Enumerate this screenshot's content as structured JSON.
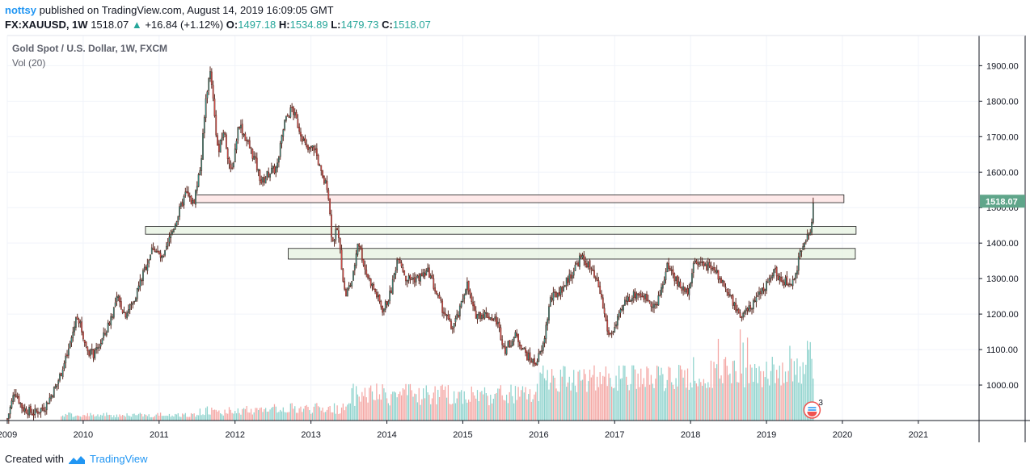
{
  "header": {
    "user": "nottsy",
    "published": " published on TradingView.com, August 14, 2019 16:09:05 GMT",
    "symbol": "FX:XAUUSD, 1W",
    "last": "1518.07",
    "change": "+16.84 (+1.12%)",
    "o_label": "O:",
    "o_val": "1497.18",
    "h_label": "H:",
    "h_val": "1534.89",
    "l_label": "L:",
    "l_val": "1479.73",
    "c_label": "C:",
    "c_val": "1518.07"
  },
  "legend": {
    "title": "Gold Spot / U.S. Dollar, 1W, FXCM",
    "volume": "Vol (20)"
  },
  "footer": {
    "created_with": "Created with",
    "brand": "TradingView"
  },
  "colors": {
    "up": "#26a69a",
    "down": "#ef5350",
    "candle_border": "#5a2a22",
    "vol_up": "#8fd3cd",
    "vol_down": "#f4a7a4",
    "resistance_fill": "#fde2e2",
    "support_fill": "#e6f2e0",
    "price_label_bg": "#5fa58a"
  },
  "chart_data": {
    "type": "candlestick",
    "title": "Gold Spot / U.S. Dollar, 1W, FXCM",
    "x_axis": {
      "range": [
        2009.0,
        2021.8
      ],
      "ticks": [
        "2009",
        "2010",
        "2011",
        "2012",
        "2013",
        "2014",
        "2015",
        "2016",
        "2017",
        "2018",
        "2019",
        "2020",
        "2021"
      ]
    },
    "y_axis": {
      "range": [
        900,
        1985
      ],
      "position": "right",
      "ticks": [
        "1000.00",
        "1100.00",
        "1200.00",
        "1300.00",
        "1400.00",
        "1500.00",
        "1600.00",
        "1700.00",
        "1800.00",
        "1900.00"
      ]
    },
    "last_price": "1518.07",
    "volume_indicator": "Vol (20)",
    "price_path": [
      [
        2009.0,
        905
      ],
      [
        2009.1,
        985
      ],
      [
        2009.2,
        935
      ],
      [
        2009.35,
        920
      ],
      [
        2009.5,
        940
      ],
      [
        2009.65,
        1000
      ],
      [
        2009.8,
        1090
      ],
      [
        2009.92,
        1200
      ],
      [
        2010.05,
        1100
      ],
      [
        2010.15,
        1085
      ],
      [
        2010.3,
        1150
      ],
      [
        2010.45,
        1245
      ],
      [
        2010.55,
        1200
      ],
      [
        2010.65,
        1230
      ],
      [
        2010.8,
        1320
      ],
      [
        2010.92,
        1390
      ],
      [
        2011.05,
        1350
      ],
      [
        2011.15,
        1420
      ],
      [
        2011.25,
        1480
      ],
      [
        2011.35,
        1540
      ],
      [
        2011.45,
        1510
      ],
      [
        2011.55,
        1620
      ],
      [
        2011.62,
        1820
      ],
      [
        2011.68,
        1890
      ],
      [
        2011.72,
        1780
      ],
      [
        2011.78,
        1650
      ],
      [
        2011.85,
        1720
      ],
      [
        2011.95,
        1590
      ],
      [
        2012.05,
        1740
      ],
      [
        2012.15,
        1690
      ],
      [
        2012.25,
        1640
      ],
      [
        2012.35,
        1570
      ],
      [
        2012.45,
        1600
      ],
      [
        2012.55,
        1610
      ],
      [
        2012.65,
        1740
      ],
      [
        2012.75,
        1780
      ],
      [
        2012.85,
        1720
      ],
      [
        2012.95,
        1660
      ],
      [
        2013.05,
        1670
      ],
      [
        2013.15,
        1580
      ],
      [
        2013.22,
        1560
      ],
      [
        2013.28,
        1400
      ],
      [
        2013.35,
        1440
      ],
      [
        2013.45,
        1250
      ],
      [
        2013.55,
        1300
      ],
      [
        2013.62,
        1410
      ],
      [
        2013.72,
        1320
      ],
      [
        2013.85,
        1260
      ],
      [
        2013.95,
        1210
      ],
      [
        2014.05,
        1260
      ],
      [
        2014.15,
        1370
      ],
      [
        2014.25,
        1300
      ],
      [
        2014.4,
        1300
      ],
      [
        2014.55,
        1320
      ],
      [
        2014.68,
        1240
      ],
      [
        2014.85,
        1160
      ],
      [
        2014.95,
        1200
      ],
      [
        2015.05,
        1290
      ],
      [
        2015.15,
        1200
      ],
      [
        2015.3,
        1200
      ],
      [
        2015.45,
        1180
      ],
      [
        2015.55,
        1100
      ],
      [
        2015.7,
        1140
      ],
      [
        2015.85,
        1080
      ],
      [
        2015.95,
        1060
      ],
      [
        2016.05,
        1100
      ],
      [
        2016.15,
        1240
      ],
      [
        2016.3,
        1270
      ],
      [
        2016.45,
        1320
      ],
      [
        2016.55,
        1360
      ],
      [
        2016.65,
        1340
      ],
      [
        2016.8,
        1270
      ],
      [
        2016.92,
        1140
      ],
      [
        2017.0,
        1160
      ],
      [
        2017.15,
        1240
      ],
      [
        2017.3,
        1260
      ],
      [
        2017.45,
        1240
      ],
      [
        2017.55,
        1220
      ],
      [
        2017.7,
        1340
      ],
      [
        2017.85,
        1280
      ],
      [
        2017.95,
        1260
      ],
      [
        2018.05,
        1340
      ],
      [
        2018.15,
        1340
      ],
      [
        2018.3,
        1330
      ],
      [
        2018.42,
        1290
      ],
      [
        2018.55,
        1240
      ],
      [
        2018.65,
        1190
      ],
      [
        2018.75,
        1210
      ],
      [
        2018.88,
        1240
      ],
      [
        2019.0,
        1290
      ],
      [
        2019.1,
        1320
      ],
      [
        2019.2,
        1300
      ],
      [
        2019.32,
        1280
      ],
      [
        2019.4,
        1330
      ],
      [
        2019.48,
        1400
      ],
      [
        2019.55,
        1420
      ],
      [
        2019.58,
        1440
      ],
      [
        2019.62,
        1518
      ]
    ],
    "zones": [
      {
        "kind": "resistance",
        "x": [
          2011.48,
          2020.02
        ],
        "y": [
          1514,
          1536
        ]
      },
      {
        "kind": "support",
        "x": [
          2010.82,
          2020.18
        ],
        "y": [
          1425,
          1447
        ]
      },
      {
        "kind": "support",
        "x": [
          2012.7,
          2020.17
        ],
        "y": [
          1355,
          1385
        ]
      }
    ]
  }
}
